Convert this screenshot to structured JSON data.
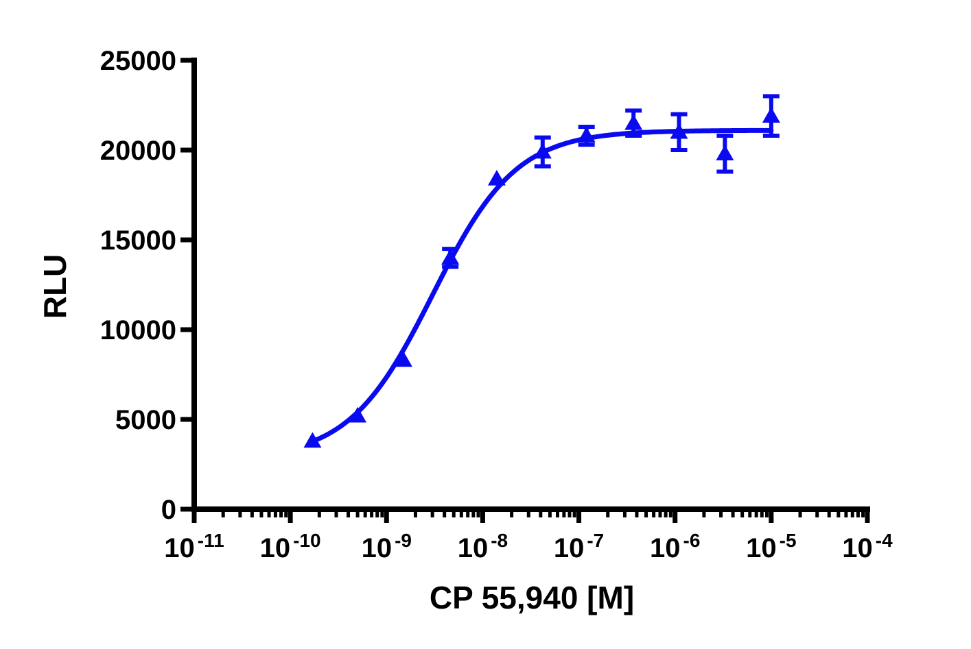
{
  "chart_data": {
    "type": "scatter",
    "xlabel": "CP 55,940 [M]",
    "ylabel": "RLU",
    "x_scale": "log",
    "xlim": [
      1e-11,
      0.0001
    ],
    "ylim": [
      0,
      25000
    ],
    "x_tick_labels": [
      {
        "base": "10",
        "exp": "-11"
      },
      {
        "base": "10",
        "exp": "-10"
      },
      {
        "base": "10",
        "exp": "-9"
      },
      {
        "base": "10",
        "exp": "-8"
      },
      {
        "base": "10",
        "exp": "-7"
      },
      {
        "base": "10",
        "exp": "-6"
      },
      {
        "base": "10",
        "exp": "-5"
      },
      {
        "base": "10",
        "exp": "-4"
      }
    ],
    "y_tick_labels": [
      "0",
      "5000",
      "10000",
      "15000",
      "20000",
      "25000"
    ],
    "grid": false,
    "legend": "none",
    "marker": "triangle",
    "color": "#0a0af0",
    "points": [
      {
        "x": 1.7e-10,
        "y": 3800,
        "err": 0
      },
      {
        "x": 5e-10,
        "y": 5200,
        "err": 0
      },
      {
        "x": 1.5e-09,
        "y": 8300,
        "err": 0
      },
      {
        "x": 4.6e-09,
        "y": 14000,
        "err": 500
      },
      {
        "x": 1.4e-08,
        "y": 18400,
        "err": 0
      },
      {
        "x": 4.2e-08,
        "y": 19900,
        "err": 800
      },
      {
        "x": 1.2e-07,
        "y": 20800,
        "err": 500
      },
      {
        "x": 3.7e-07,
        "y": 21500,
        "err": 700
      },
      {
        "x": 1.1e-06,
        "y": 21000,
        "err": 1000
      },
      {
        "x": 3.3e-06,
        "y": 19800,
        "err": 1000
      },
      {
        "x": 1e-05,
        "y": 21900,
        "err": 1100
      }
    ],
    "fit_curve": {
      "bottom": 2800,
      "top": 21100,
      "log_ec50": -8.52,
      "hill_slope": 1.0
    }
  }
}
